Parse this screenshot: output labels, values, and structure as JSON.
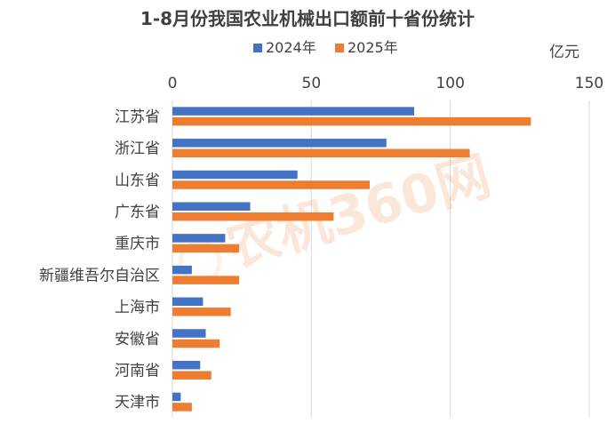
{
  "chart_data": {
    "type": "bar",
    "orientation": "horizontal",
    "title": "1-8月份我国农业机械出口额前十省份统计",
    "unit_label": "亿元",
    "categories": [
      "江苏省",
      "浙江省",
      "山东省",
      "广东省",
      "重庆市",
      "新疆维吾尔自治区",
      "上海市",
      "安徽省",
      "河南省",
      "天津市"
    ],
    "series": [
      {
        "name": "2024年",
        "color": "#4472C4",
        "values": [
          87,
          77,
          45,
          28,
          19,
          7,
          11,
          12,
          10,
          3
        ]
      },
      {
        "name": "2025年",
        "color": "#ED7D31",
        "values": [
          129,
          107,
          71,
          58,
          24,
          24,
          21,
          17,
          14,
          7
        ]
      }
    ],
    "xlim": [
      0,
      150
    ],
    "x_ticks": [
      "0",
      "50",
      "100",
      "150"
    ],
    "x_axis_position": "top",
    "grid": "vertical",
    "legend_position": "top"
  },
  "watermark": "农机360网",
  "colors": {
    "gridline": "#D9D9D9",
    "text": "#404040",
    "title": "#404040"
  }
}
